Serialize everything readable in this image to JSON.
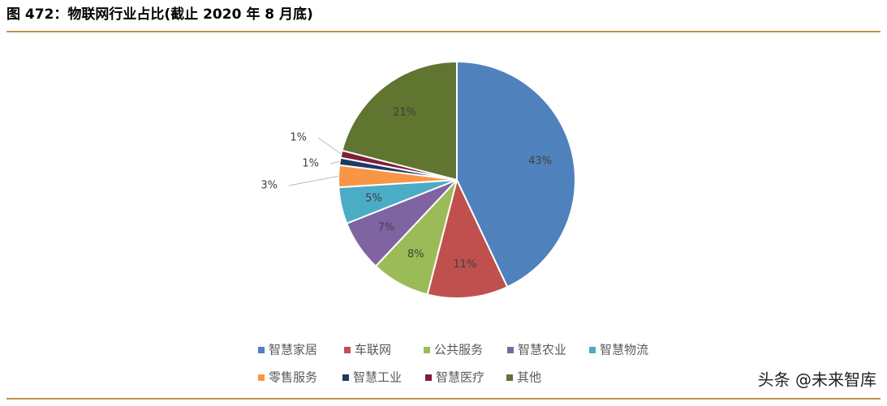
{
  "chart_data": {
    "type": "pie",
    "title": "图 472：物联网行业占比(截止 2020 年 8 月底)",
    "categories": [
      "智慧家居",
      "车联网",
      "公共服务",
      "智慧农业",
      "智慧物流",
      "零售服务",
      "智慧工业",
      "智慧医疗",
      "其他"
    ],
    "values": [
      43,
      11,
      8,
      7,
      5,
      3,
      1,
      1,
      21
    ],
    "value_labels": [
      "43%",
      "11%",
      "8%",
      "7%",
      "5%",
      "3%",
      "1%",
      "1%",
      "21%"
    ],
    "colors": [
      "#4f81bd",
      "#c0504d",
      "#9bbb59",
      "#8064a2",
      "#4bacc6",
      "#f79646",
      "#1f3864",
      "#7f1f3b",
      "#5f7530"
    ],
    "legend": "bottom",
    "watermark": "头条 @未来智库"
  }
}
